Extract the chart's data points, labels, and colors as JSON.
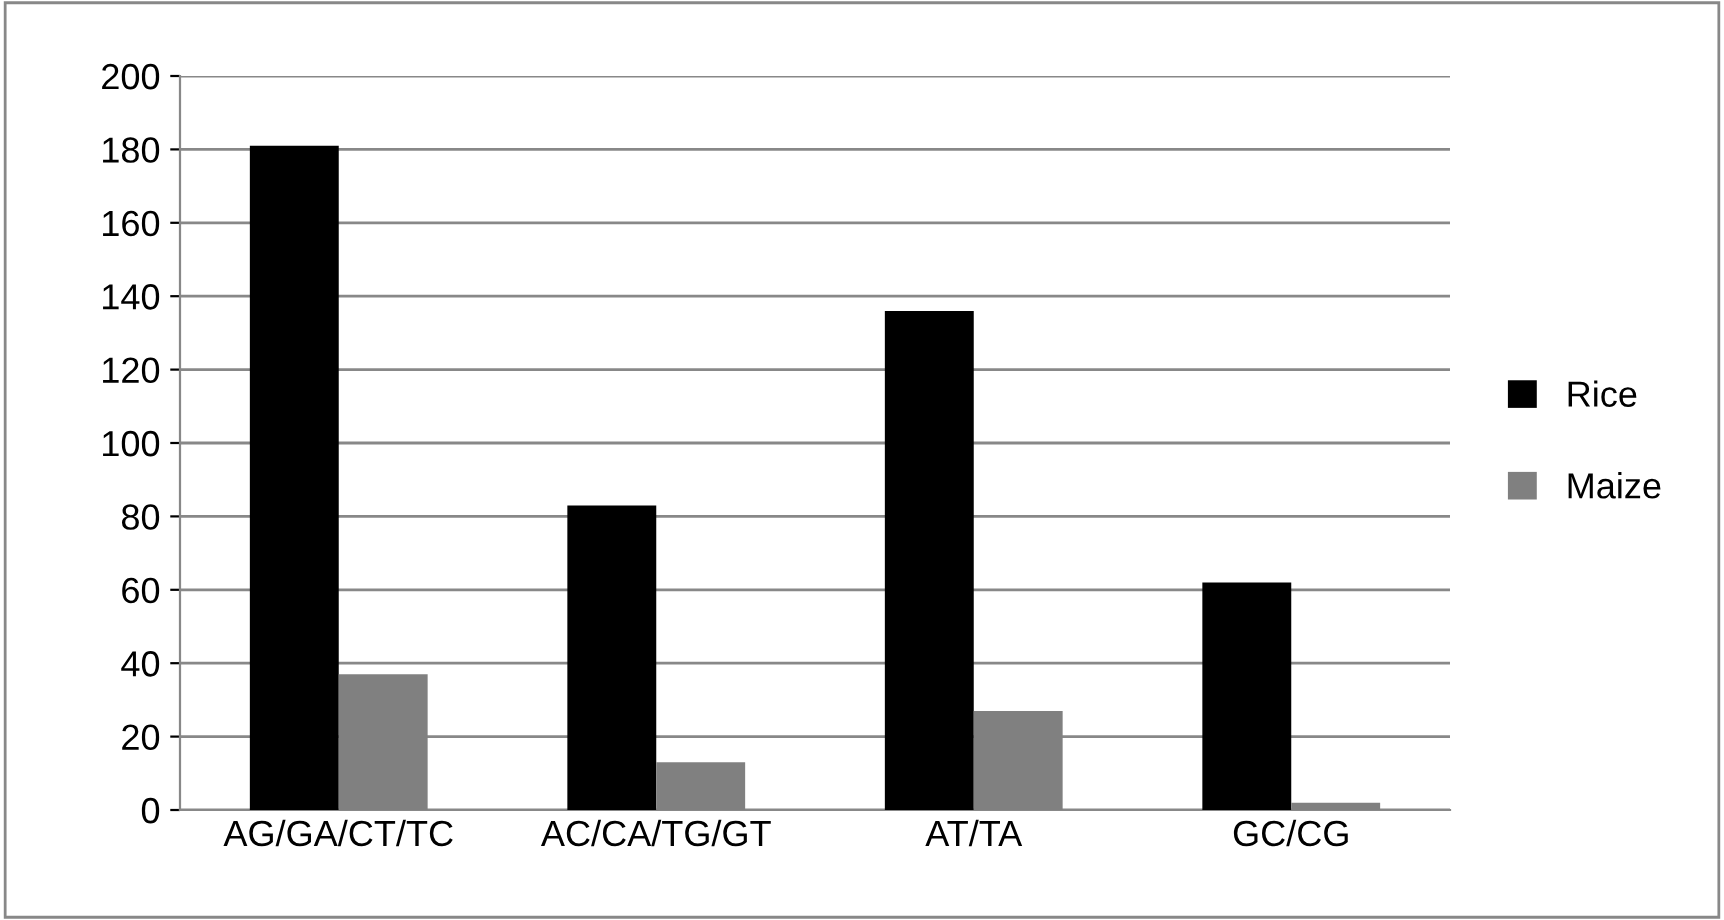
{
  "chart_data": {
    "type": "bar",
    "categories": [
      "AG/GA/CT/TC",
      "AC/CA/TG/GT",
      "AT/TA",
      "GC/CG"
    ],
    "series": [
      {
        "name": "Rice",
        "color": "#000000",
        "values": [
          181,
          83,
          136,
          62
        ]
      },
      {
        "name": "Maize",
        "color": "#808080",
        "values": [
          37,
          13,
          27,
          2
        ]
      }
    ],
    "ylim": [
      0,
      200
    ],
    "yticks": [
      0,
      20,
      40,
      60,
      80,
      100,
      120,
      140,
      160,
      180,
      200
    ],
    "grid": "y",
    "legend": "right"
  }
}
